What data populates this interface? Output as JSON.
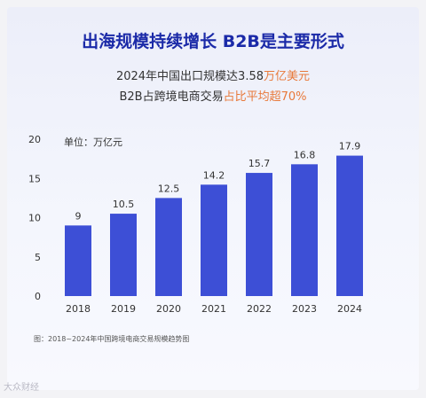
{
  "header": {
    "title": "出海规模持续增长 B2B是主要形式",
    "line1_prefix": "2024年中国出口规模达3.58",
    "line1_highlight": "万亿美元",
    "line2_prefix": "B2B占跨境电商交易",
    "line2_highlight": "占比平均超70%"
  },
  "colors": {
    "bar": "#3d4fd6",
    "title": "#1b2aa8",
    "highlight": "#e8793a"
  },
  "chart_data": {
    "type": "bar",
    "categories": [
      "2018",
      "2019",
      "2020",
      "2021",
      "2022",
      "2023",
      "2024"
    ],
    "values": [
      9,
      10.5,
      12.5,
      14.2,
      15.7,
      16.8,
      17.9
    ],
    "value_labels": [
      "9",
      "10.5",
      "12.5",
      "14.2",
      "15.7",
      "16.8",
      "17.9"
    ],
    "unit_label": "单位：万亿元",
    "ylim": [
      0,
      20
    ],
    "yticks": [
      0,
      5,
      10,
      15,
      20
    ],
    "grid": false
  },
  "caption": "图：2018~2024年中国跨境电商交易规模趋势图",
  "watermark": "大众财经"
}
